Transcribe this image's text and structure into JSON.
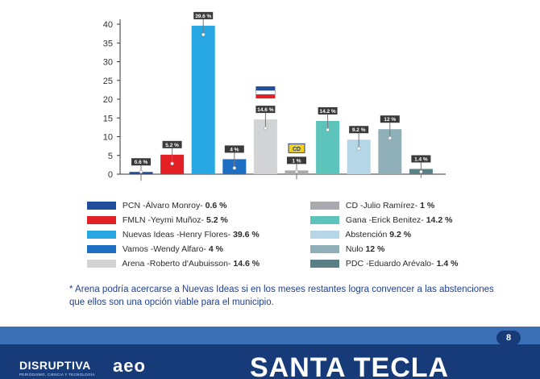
{
  "chart_data": {
    "type": "bar",
    "yticks": [
      0,
      5,
      10,
      15,
      20,
      25,
      30,
      35,
      40
    ],
    "ylim": [
      0,
      42
    ],
    "grid": false,
    "bars": [
      {
        "candidate": "PCN -Álvaro Monroy-",
        "value": 0.6,
        "label": "0.6 %",
        "color": "#1f4e9c"
      },
      {
        "candidate": "FMLN -Yeymi Muñoz-",
        "value": 5.2,
        "label": "5.2 %",
        "color": "#e32026"
      },
      {
        "candidate": "Nuevas Ideas -Henry Flores-",
        "value": 39.6,
        "label": "39.6 %",
        "color": "#27a7e1"
      },
      {
        "candidate": "Vamos -Wendy Alfaro-",
        "value": 4,
        "label": "4 %",
        "color": "#1e6fc4"
      },
      {
        "candidate": "Arena -Roberto d'Aubuisson-",
        "value": 14.6,
        "label": "14.6 %",
        "color": "#d2d3d5"
      },
      {
        "candidate": "CD -Julio Ramírez-",
        "value": 1,
        "label": "1 %",
        "color": "#a8aaad"
      },
      {
        "candidate": "Gana -Erick Benítez-",
        "value": 14.2,
        "label": "14.2 %",
        "color": "#5cc4bb"
      },
      {
        "candidate": "Abstención",
        "value": 9.2,
        "label": "9.2 %",
        "color": "#b4d6e6"
      },
      {
        "candidate": "Nulo",
        "value": 12,
        "label": "12 %",
        "color": "#8fb0b8"
      },
      {
        "candidate": "PDC -Eduardo Arévalo-",
        "value": 1.4,
        "label": "1.4 %",
        "color": "#5a7f86"
      }
    ],
    "legend": {
      "left": [
        {
          "name": "PCN -Álvaro Monroy-",
          "value": "0.6 %",
          "color": "#1f4e9c"
        },
        {
          "name": "FMLN -Yeymi Muñoz-",
          "value": "5.2 %",
          "color": "#e32026"
        },
        {
          "name": "Nuevas Ideas -Henry Flores-",
          "value": "39.6 %",
          "color": "#27a7e1"
        },
        {
          "name": "Vamos -Wendy Alfaro-",
          "value": "4 %",
          "color": "#1e6fc4"
        },
        {
          "name": "Arena -Roberto d'Aubuisson-",
          "value": "14.6 %",
          "color": "#d2d3d5"
        }
      ],
      "right": [
        {
          "name": "CD -Julio Ramírez-",
          "value": "1 %",
          "color": "#a8aaad"
        },
        {
          "name": "Gana -Erick Benitez-",
          "value": "14.2 %",
          "color": "#5cc4bb"
        },
        {
          "name": "Abstención",
          "value": "9.2 %",
          "color": "#b4d6e6"
        },
        {
          "name": "Nulo",
          "value": "12 %",
          "color": "#8fb0b8"
        },
        {
          "name": "PDC -Eduardo Arévalo-",
          "value": "1.4 %",
          "color": "#5a7f86"
        }
      ]
    },
    "icons": {
      "arena": "arena-flag-icon",
      "cd": "cd-logo-icon",
      "cd_text": "CD"
    }
  },
  "note": "* Arena podría acercarse a Nuevas Ideas si en los meses restantes logra convencer a las abstenciones que ellos son una opción viable para el municipio.",
  "footer": {
    "brand": "DISRUPTIVA",
    "brand_sub": "PERIODISMO, CIENCIA Y TECNOLOGÍA",
    "logo": "aeo",
    "title": "SANTA TECLA",
    "page": "8"
  }
}
